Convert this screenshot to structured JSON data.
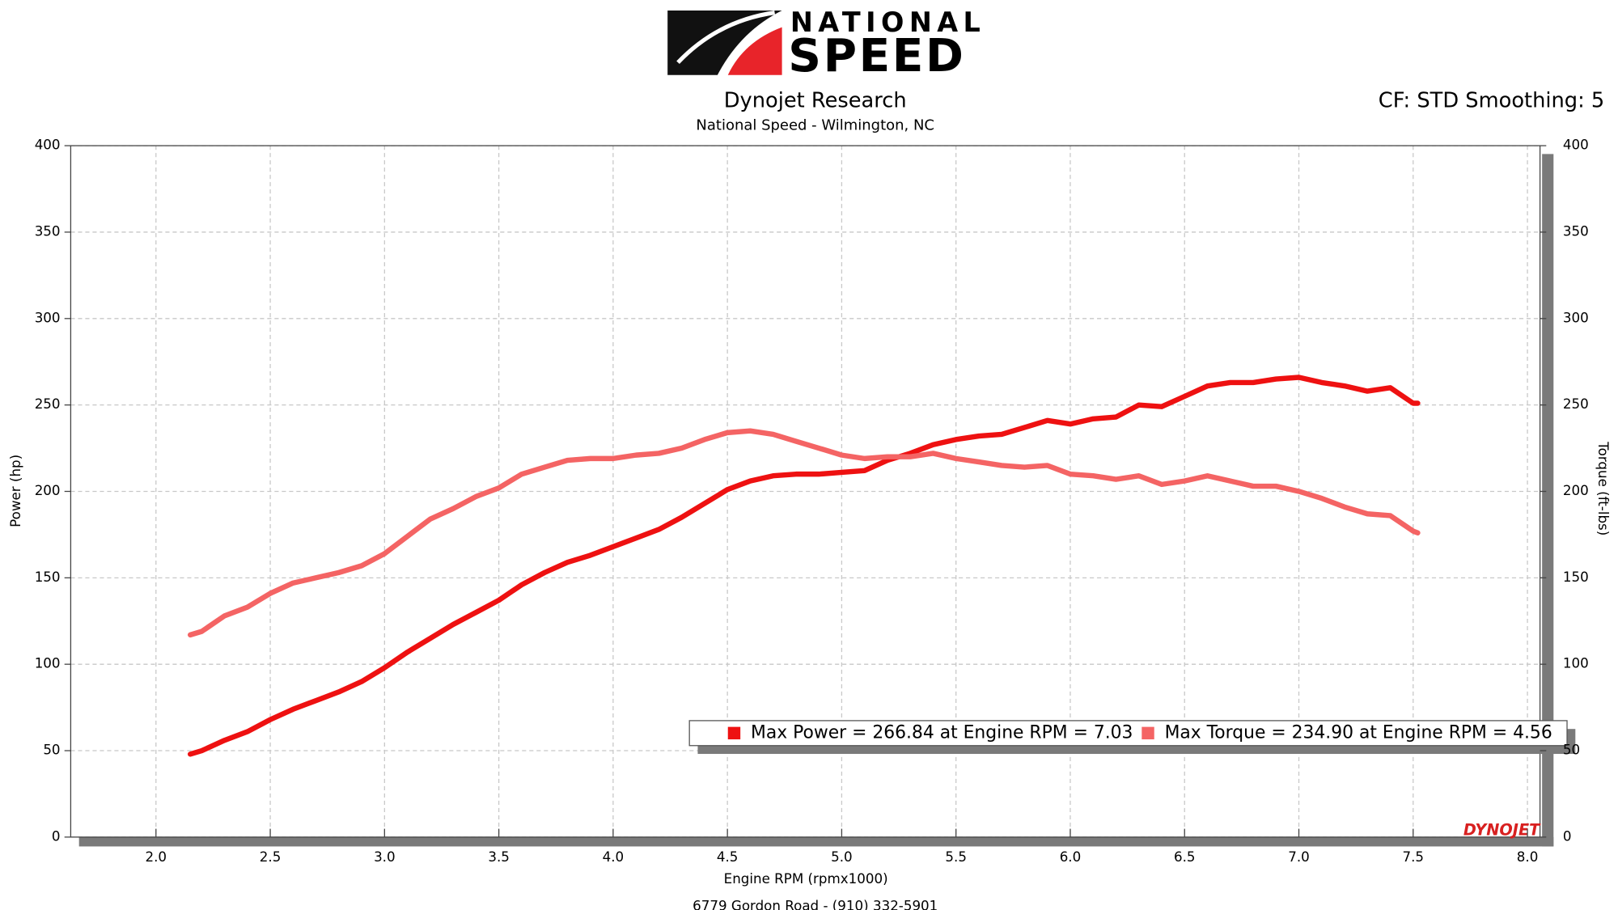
{
  "chart_data": {
    "type": "line",
    "brand": {
      "line1": "NATIONAL",
      "line2": "SPEED"
    },
    "title": "Dynojet Research",
    "subtitle": "National Speed - Wilmington, NC",
    "settings_note": "CF: STD Smoothing: 5",
    "xlabel": "Engine RPM (rpmx1000)",
    "ylabel": "Power (hp)",
    "y2label": "Torque (ft-lbs)",
    "footer": "6779 Gordon Road - (910) 332-5901",
    "watermark": "DYNOJET",
    "grid": true,
    "xlim": [
      1.627,
      8.055
    ],
    "xticks": [
      {
        "value": 2,
        "label": "2.0"
      },
      {
        "value": 2.5,
        "label": "2.5"
      },
      {
        "value": 3,
        "label": "3.0"
      },
      {
        "value": 3.5,
        "label": "3.5"
      },
      {
        "value": 4,
        "label": "4.0"
      },
      {
        "value": 4.5,
        "label": "4.5"
      },
      {
        "value": 5,
        "label": "5.0"
      },
      {
        "value": 5.5,
        "label": "5.5"
      },
      {
        "value": 6,
        "label": "6.0"
      },
      {
        "value": 6.5,
        "label": "6.5"
      },
      {
        "value": 7,
        "label": "7.0"
      },
      {
        "value": 7.5,
        "label": "7.5"
      },
      {
        "value": 8,
        "label": "8.0"
      }
    ],
    "ylim": [
      0,
      400
    ],
    "yticks": [
      0,
      50,
      100,
      150,
      200,
      250,
      300,
      350,
      400
    ],
    "y2lim": [
      0,
      400
    ],
    "y2ticks": [
      0,
      50,
      100,
      150,
      200,
      250,
      300,
      350,
      400
    ],
    "x": [
      2.15,
      2.2,
      2.3,
      2.4,
      2.5,
      2.6,
      2.7,
      2.8,
      2.9,
      3.0,
      3.1,
      3.2,
      3.3,
      3.4,
      3.5,
      3.6,
      3.7,
      3.8,
      3.9,
      4.0,
      4.1,
      4.2,
      4.3,
      4.4,
      4.5,
      4.6,
      4.7,
      4.8,
      4.9,
      5.0,
      5.1,
      5.2,
      5.3,
      5.4,
      5.5,
      5.6,
      5.7,
      5.8,
      5.9,
      6.0,
      6.1,
      6.2,
      6.3,
      6.4,
      6.5,
      6.6,
      6.7,
      6.8,
      6.9,
      7.0,
      7.1,
      7.2,
      7.3,
      7.4,
      7.5,
      7.52
    ],
    "series": [
      {
        "name": "Max Power = 266.84 at Engine RPM = 7.03",
        "color": "#ee1111",
        "values": [
          48,
          50,
          56,
          61,
          68,
          74,
          79,
          84,
          90,
          98,
          107,
          115,
          123,
          130,
          137,
          146,
          153,
          159,
          163,
          168,
          173,
          178,
          185,
          193,
          201,
          206,
          209,
          210,
          210,
          211,
          212,
          218,
          222,
          227,
          230,
          232,
          233,
          237,
          241,
          239,
          242,
          243,
          250,
          249,
          255,
          261,
          263,
          263,
          265,
          266,
          263,
          261,
          258,
          260,
          251,
          251
        ]
      },
      {
        "name": "Max Torque = 234.90 at Engine RPM = 4.56",
        "color": "#f46464",
        "axis": "y2",
        "values": [
          117,
          119,
          128,
          133,
          141,
          147,
          150,
          153,
          157,
          164,
          174,
          184,
          190,
          197,
          202,
          210,
          214,
          218,
          219,
          219,
          221,
          222,
          225,
          230,
          234,
          235,
          233,
          229,
          225,
          221,
          219,
          220,
          220,
          222,
          219,
          217,
          215,
          214,
          215,
          210,
          209,
          207,
          209,
          204,
          206,
          209,
          206,
          203,
          203,
          200,
          196,
          191,
          187,
          186,
          177,
          176
        ]
      }
    ]
  }
}
